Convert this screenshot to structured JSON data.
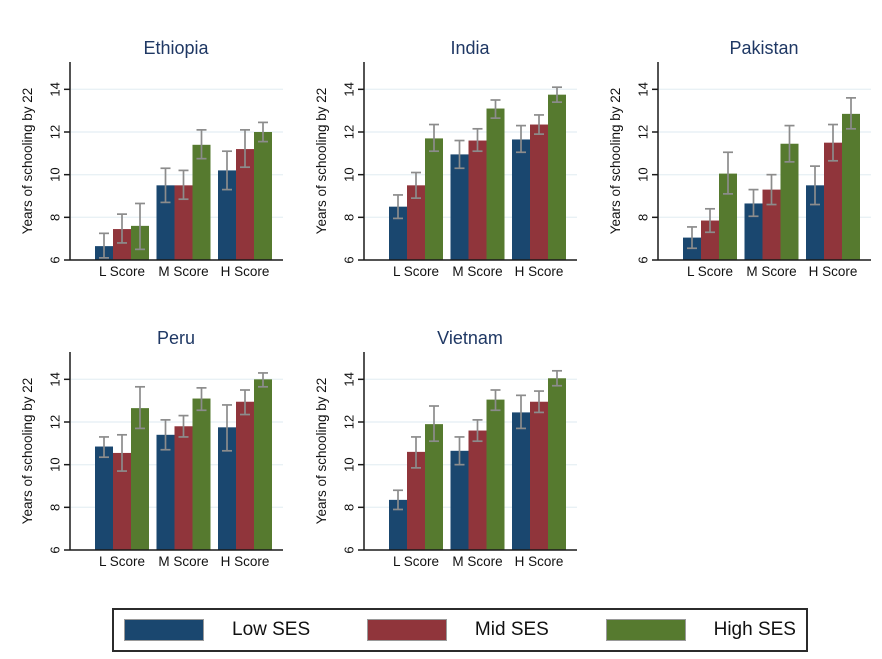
{
  "figure": {
    "background": "#ffffff",
    "title_color": "#1F3864",
    "axis_color": "#1a1a1a",
    "grid_color": "#E9F1F5",
    "errorbar_color": "#8C8C8C",
    "tick_label_color": "#111111"
  },
  "legend": {
    "entries": [
      {
        "label": "Low SES",
        "color": "#1A476F"
      },
      {
        "label": "Mid SES",
        "color": "#90353B"
      },
      {
        "label": "High SES",
        "color": "#567A2F"
      }
    ]
  },
  "chart_data": [
    {
      "type": "bar",
      "title": "Ethiopia",
      "ylabel": "Years of schooling by 22",
      "xlabel": "",
      "categories": [
        "L Score",
        "M Score",
        "H Score"
      ],
      "yticks": [
        6,
        8,
        10,
        12,
        14
      ],
      "ylim": [
        6,
        15
      ],
      "grid": true,
      "series": [
        {
          "name": "Low SES",
          "color": "#1A476F",
          "values": [
            6.65,
            9.5,
            10.2
          ],
          "ci_low": [
            6.1,
            8.7,
            9.3
          ],
          "ci_high": [
            7.25,
            10.3,
            11.1
          ]
        },
        {
          "name": "Mid SES",
          "color": "#90353B",
          "values": [
            7.45,
            9.5,
            11.2
          ],
          "ci_low": [
            6.8,
            8.85,
            10.35
          ],
          "ci_high": [
            8.15,
            10.2,
            12.1
          ]
        },
        {
          "name": "High SES",
          "color": "#567A2F",
          "values": [
            7.6,
            11.4,
            12.0
          ],
          "ci_low": [
            6.5,
            10.75,
            11.55
          ],
          "ci_high": [
            8.65,
            12.1,
            12.45
          ]
        }
      ]
    },
    {
      "type": "bar",
      "title": "India",
      "ylabel": "Years of schooling by 22",
      "xlabel": "",
      "categories": [
        "L Score",
        "M Score",
        "H Score"
      ],
      "yticks": [
        6,
        8,
        10,
        12,
        14
      ],
      "ylim": [
        6,
        15
      ],
      "grid": true,
      "series": [
        {
          "name": "Low SES",
          "color": "#1A476F",
          "values": [
            8.5,
            10.95,
            11.65
          ],
          "ci_low": [
            7.95,
            10.3,
            11.05
          ],
          "ci_high": [
            9.05,
            11.6,
            12.3
          ]
        },
        {
          "name": "Mid SES",
          "color": "#90353B",
          "values": [
            9.5,
            11.6,
            12.35
          ],
          "ci_low": [
            8.9,
            11.1,
            11.9
          ],
          "ci_high": [
            10.1,
            12.15,
            12.8
          ]
        },
        {
          "name": "High SES",
          "color": "#567A2F",
          "values": [
            11.7,
            13.1,
            13.75
          ],
          "ci_low": [
            11.1,
            12.65,
            13.4
          ],
          "ci_high": [
            12.35,
            13.5,
            14.1
          ]
        }
      ]
    },
    {
      "type": "bar",
      "title": "Pakistan",
      "ylabel": "Years of schooling by 22",
      "xlabel": "",
      "categories": [
        "L Score",
        "M Score",
        "H Score"
      ],
      "yticks": [
        6,
        8,
        10,
        12,
        14
      ],
      "ylim": [
        6,
        15
      ],
      "grid": true,
      "series": [
        {
          "name": "Low SES",
          "color": "#1A476F",
          "values": [
            7.05,
            8.65,
            9.5
          ],
          "ci_low": [
            6.55,
            8.05,
            8.6
          ],
          "ci_high": [
            7.55,
            9.3,
            10.4
          ]
        },
        {
          "name": "Mid SES",
          "color": "#90353B",
          "values": [
            7.85,
            9.3,
            11.5
          ],
          "ci_low": [
            7.3,
            8.6,
            10.65
          ],
          "ci_high": [
            8.4,
            10.0,
            12.35
          ]
        },
        {
          "name": "High SES",
          "color": "#567A2F",
          "values": [
            10.05,
            11.45,
            12.85
          ],
          "ci_low": [
            9.1,
            10.6,
            12.15
          ],
          "ci_high": [
            11.05,
            12.3,
            13.6
          ]
        }
      ]
    },
    {
      "type": "bar",
      "title": "Peru",
      "ylabel": "Years of schooling by 22",
      "xlabel": "",
      "categories": [
        "L Score",
        "M Score",
        "H Score"
      ],
      "yticks": [
        6,
        8,
        10,
        12,
        14
      ],
      "ylim": [
        6,
        15
      ],
      "grid": true,
      "series": [
        {
          "name": "Low SES",
          "color": "#1A476F",
          "values": [
            10.85,
            11.4,
            11.75
          ],
          "ci_low": [
            10.35,
            10.7,
            10.65
          ],
          "ci_high": [
            11.3,
            12.1,
            12.8
          ]
        },
        {
          "name": "Mid SES",
          "color": "#90353B",
          "values": [
            10.55,
            11.8,
            12.95
          ],
          "ci_low": [
            9.7,
            11.3,
            12.35
          ],
          "ci_high": [
            11.4,
            12.3,
            13.5
          ]
        },
        {
          "name": "High SES",
          "color": "#567A2F",
          "values": [
            12.65,
            13.1,
            14.0
          ],
          "ci_low": [
            11.7,
            12.55,
            13.65
          ],
          "ci_high": [
            13.65,
            13.6,
            14.3
          ]
        }
      ]
    },
    {
      "type": "bar",
      "title": "Vietnam",
      "ylabel": "Years of schooling by 22",
      "xlabel": "",
      "categories": [
        "L Score",
        "M Score",
        "H Score"
      ],
      "yticks": [
        6,
        8,
        10,
        12,
        14
      ],
      "ylim": [
        6,
        15
      ],
      "grid": true,
      "series": [
        {
          "name": "Low SES",
          "color": "#1A476F",
          "values": [
            8.35,
            10.65,
            12.45
          ],
          "ci_low": [
            7.9,
            10.0,
            11.7
          ],
          "ci_high": [
            8.8,
            11.3,
            13.25
          ]
        },
        {
          "name": "Mid SES",
          "color": "#90353B",
          "values": [
            10.6,
            11.6,
            12.95
          ],
          "ci_low": [
            9.85,
            11.1,
            12.45
          ],
          "ci_high": [
            11.3,
            12.1,
            13.45
          ]
        },
        {
          "name": "High SES",
          "color": "#567A2F",
          "values": [
            11.9,
            13.05,
            14.05
          ],
          "ci_low": [
            11.1,
            12.55,
            13.7
          ],
          "ci_high": [
            12.75,
            13.5,
            14.4
          ]
        }
      ]
    }
  ]
}
